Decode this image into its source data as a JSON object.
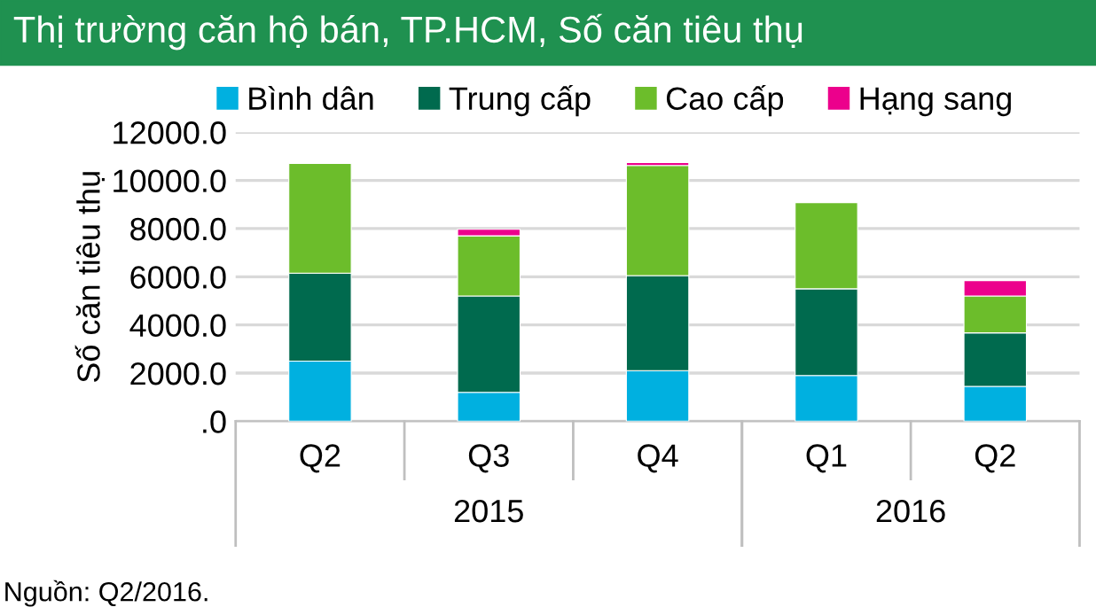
{
  "chart_data": {
    "type": "bar",
    "stacked": true,
    "title": "Thị trường căn hộ bán, TP.HCM, Số căn tiêu thụ",
    "ylabel": "Số căn tiêu thụ",
    "categories": [
      "Q2",
      "Q3",
      "Q4",
      "Q1",
      "Q2"
    ],
    "series": [
      {
        "name": "Bình dân",
        "color": "#00b0e0",
        "values": [
          2500,
          1200,
          2100,
          1900,
          1450
        ]
      },
      {
        "name": "Trung cấp",
        "color": "#006a4e",
        "values": [
          3650,
          4000,
          3950,
          3600,
          2220
        ]
      },
      {
        "name": "Cao cấp",
        "color": "#6cbd2b",
        "values": [
          4550,
          2500,
          4570,
          3580,
          1530
        ]
      },
      {
        "name": "Hạng sang",
        "color": "#ec008c",
        "values": [
          null,
          270,
          120,
          null,
          640
        ]
      }
    ],
    "ylim": [
      0,
      12000
    ],
    "yticks": [
      {
        "value": 0,
        "label": ".0"
      },
      {
        "value": 2000,
        "label": "2000.0"
      },
      {
        "value": 4000,
        "label": "4000.0"
      },
      {
        "value": 6000,
        "label": "6000.0"
      },
      {
        "value": 8000,
        "label": "8000.0"
      },
      {
        "value": 10000,
        "label": "10000.0"
      },
      {
        "value": 12000,
        "label": "12000.0"
      }
    ],
    "grid": "y",
    "legend": "top",
    "annotations": [
      "2015",
      "2016",
      "Nguồn: Q2/2016."
    ]
  }
}
